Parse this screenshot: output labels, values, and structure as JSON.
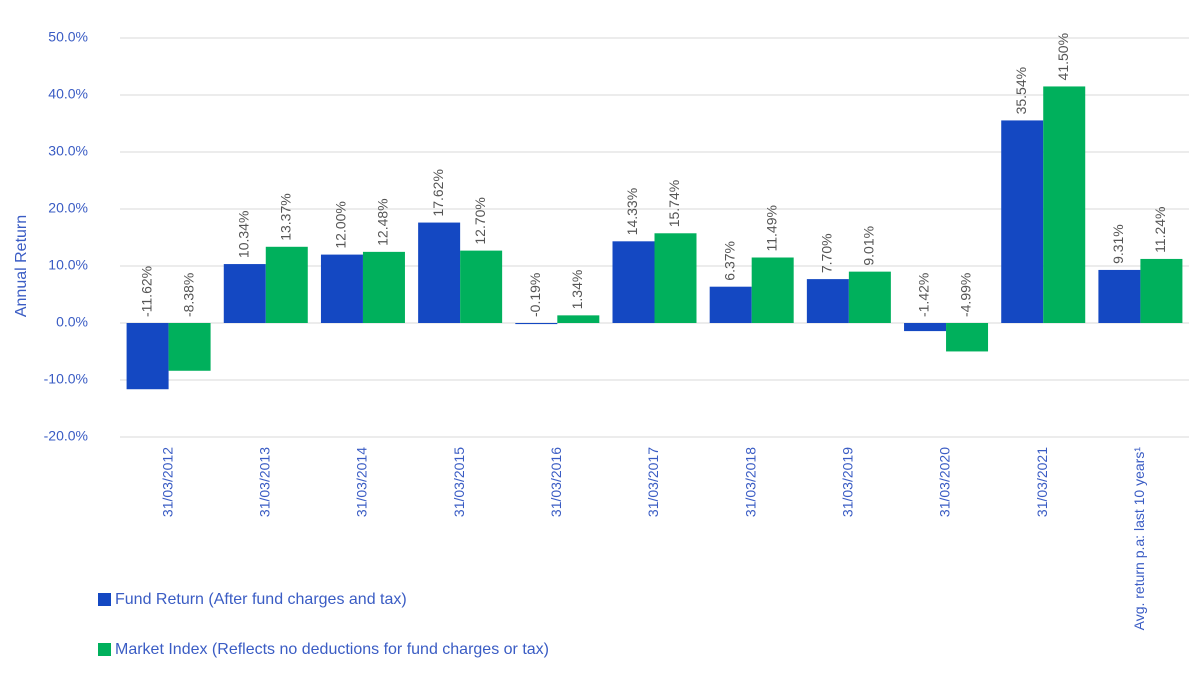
{
  "chart_data": {
    "type": "bar",
    "ylabel": "Annual Return",
    "categories": [
      "31/03/2012",
      "31/03/2013",
      "31/03/2014",
      "31/03/2015",
      "31/03/2016",
      "31/03/2017",
      "31/03/2018",
      "31/03/2019",
      "31/03/2020",
      "31/03/2021",
      "Avg. return p.a: last 10 years¹"
    ],
    "series": [
      {
        "name": "Fund Return (After fund charges and tax)",
        "color": "#1448c2",
        "values": [
          -11.62,
          10.34,
          12.0,
          17.62,
          -0.19,
          14.33,
          6.37,
          7.7,
          -1.42,
          35.54,
          9.31
        ],
        "value_labels": [
          "-11.62%",
          "10.34%",
          "12.00%",
          "17.62%",
          "-0.19%",
          "14.33%",
          "6.37%",
          "7.70%",
          "-1.42%",
          "35.54%",
          "9.31%"
        ]
      },
      {
        "name": "Market Index (Reflects no deductions for fund charges or tax)",
        "color": "#00b05c",
        "values": [
          -8.38,
          13.37,
          12.48,
          12.7,
          1.34,
          15.74,
          11.49,
          9.01,
          -4.99,
          41.5,
          11.24
        ],
        "value_labels": [
          "-8.38%",
          "13.37%",
          "12.48%",
          "12.70%",
          "1.34%",
          "15.74%",
          "11.49%",
          "9.01%",
          "-4.99%",
          "41.50%",
          "11.24%"
        ]
      }
    ],
    "ylim": [
      -20,
      50
    ],
    "yticks": [
      {
        "value": -20,
        "label": "-20.0%"
      },
      {
        "value": -10,
        "label": "-10.0%"
      },
      {
        "value": 0,
        "label": "0.0%"
      },
      {
        "value": 10,
        "label": "10.0%"
      },
      {
        "value": 20,
        "label": "20.0%"
      },
      {
        "value": 30,
        "label": "30.0%"
      },
      {
        "value": 40,
        "label": "40.0%"
      },
      {
        "value": 50,
        "label": "50.0%"
      }
    ],
    "grid": true
  }
}
